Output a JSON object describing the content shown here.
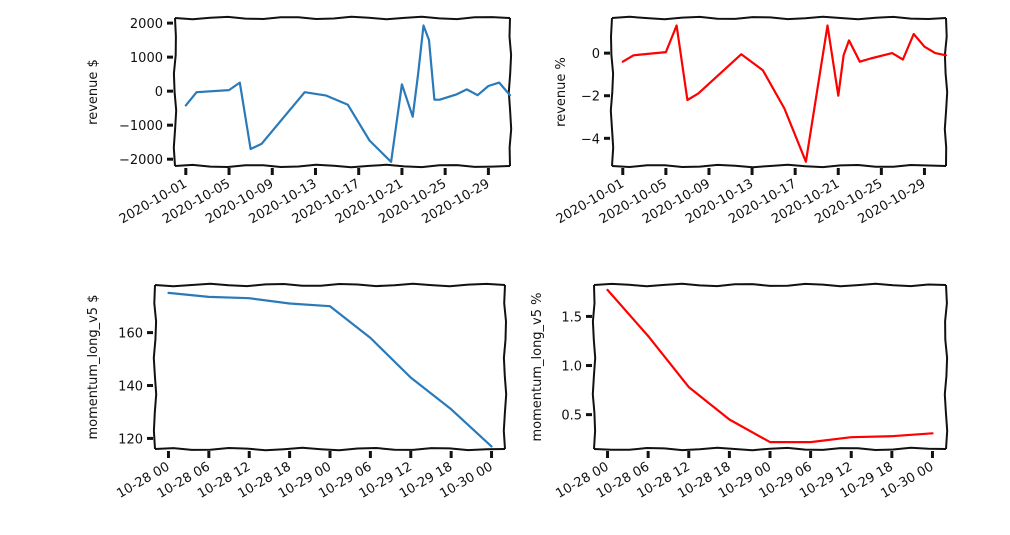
{
  "chart_data": [
    {
      "type": "line",
      "ylabel": "revenue $",
      "color": "#2a7ab9",
      "ylim": [
        -2200,
        2150
      ],
      "xlim": [
        "2020-09-30",
        "2020-10-31"
      ],
      "x_ticks": [
        "2020-10-01",
        "2020-10-05",
        "2020-10-09",
        "2020-10-13",
        "2020-10-17",
        "2020-10-21",
        "2020-10-25",
        "2020-10-29"
      ],
      "y_ticks": [
        2000,
        1000,
        0,
        -1000,
        -2000
      ],
      "y_tick_labels": [
        "2000",
        "1000",
        "0",
        "−1000",
        "−2000"
      ],
      "series": [
        {
          "x": [
            "2020-10-01",
            "2020-10-02",
            "2020-10-05",
            "2020-10-06",
            "2020-10-07",
            "2020-10-08",
            "2020-10-12",
            "2020-10-14",
            "2020-10-16",
            "2020-10-18",
            "2020-10-20",
            "2020-10-21",
            "2020-10-22",
            "2020-10-22 12:00",
            "2020-10-23",
            "2020-10-23 12:00",
            "2020-10-24",
            "2020-10-24 12:00",
            "2020-10-26",
            "2020-10-27",
            "2020-10-28",
            "2020-10-29",
            "2020-10-30",
            "2020-10-31"
          ],
          "y": [
            -420,
            -30,
            30,
            250,
            -1700,
            -1550,
            -30,
            -130,
            -400,
            -1450,
            -2080,
            200,
            -750,
            500,
            1930,
            1500,
            -250,
            -250,
            -100,
            50,
            -120,
            150,
            250,
            -120
          ]
        }
      ]
    },
    {
      "type": "line",
      "ylabel": "revenue %",
      "color": "#ff0000",
      "ylim": [
        -5.3,
        1.65
      ],
      "xlim": [
        "2020-09-30",
        "2020-10-31"
      ],
      "x_ticks": [
        "2020-10-01",
        "2020-10-05",
        "2020-10-09",
        "2020-10-13",
        "2020-10-17",
        "2020-10-21",
        "2020-10-25",
        "2020-10-29"
      ],
      "y_ticks": [
        0,
        -2,
        -4
      ],
      "y_tick_labels": [
        "0",
        "−2",
        "−4"
      ],
      "series": [
        {
          "x": [
            "2020-10-01",
            "2020-10-02",
            "2020-10-05",
            "2020-10-06",
            "2020-10-07",
            "2020-10-08",
            "2020-10-12",
            "2020-10-14",
            "2020-10-16",
            "2020-10-18",
            "2020-10-20",
            "2020-10-21",
            "2020-10-21 12:00",
            "2020-10-22",
            "2020-10-22 12:00",
            "2020-10-23",
            "2020-10-24",
            "2020-10-26",
            "2020-10-27",
            "2020-10-28",
            "2020-10-29",
            "2020-10-30",
            "2020-10-31"
          ],
          "y": [
            -0.4,
            -0.1,
            0.05,
            1.3,
            -2.2,
            -1.9,
            -0.05,
            -0.8,
            -2.6,
            -5.1,
            1.3,
            -2.0,
            -0.1,
            0.6,
            0.1,
            -0.4,
            -0.25,
            0.0,
            -0.3,
            0.9,
            0.3,
            0.0,
            -0.1
          ]
        }
      ]
    },
    {
      "type": "line",
      "ylabel": "momentum_long_v5 $",
      "color": "#2a7ab9",
      "ylim": [
        116,
        178
      ],
      "xlim": [
        "2020-10-27 22:00",
        "2020-10-30 02:00"
      ],
      "x_ticks": [
        "2020-10-28 00:00",
        "2020-10-28 06:00",
        "2020-10-28 12:00",
        "2020-10-28 18:00",
        "2020-10-29 00:00",
        "2020-10-29 06:00",
        "2020-10-29 12:00",
        "2020-10-29 18:00",
        "2020-10-30 00:00"
      ],
      "x_tick_labels": [
        "10-28 00",
        "10-28 06",
        "10-28 12",
        "10-28 18",
        "10-29 00",
        "10-29 06",
        "10-29 12",
        "10-29 18",
        "10-30 00"
      ],
      "y_ticks": [
        160,
        140,
        120
      ],
      "y_tick_labels": [
        "160",
        "140",
        "120"
      ],
      "series": [
        {
          "x": [
            "2020-10-28 00:00",
            "2020-10-28 06:00",
            "2020-10-28 12:00",
            "2020-10-28 18:00",
            "2020-10-29 00:00",
            "2020-10-29 06:00",
            "2020-10-29 12:00",
            "2020-10-29 18:00",
            "2020-10-30 00:00"
          ],
          "y": [
            175,
            173.5,
            173,
            171,
            170,
            158,
            143,
            131,
            117
          ]
        }
      ]
    },
    {
      "type": "line",
      "ylabel": "momentum_long_v5 %",
      "color": "#ff0000",
      "ylim": [
        0.15,
        1.82
      ],
      "xlim": [
        "2020-10-27 22:00",
        "2020-10-30 02:00"
      ],
      "x_ticks": [
        "2020-10-28 00:00",
        "2020-10-28 06:00",
        "2020-10-28 12:00",
        "2020-10-28 18:00",
        "2020-10-29 00:00",
        "2020-10-29 06:00",
        "2020-10-29 12:00",
        "2020-10-29 18:00",
        "2020-10-30 00:00"
      ],
      "x_tick_labels": [
        "10-28 00",
        "10-28 06",
        "10-28 12",
        "10-28 18",
        "10-29 00",
        "10-29 06",
        "10-29 12",
        "10-29 18",
        "10-30 00"
      ],
      "y_ticks": [
        1.5,
        1.0,
        0.5
      ],
      "y_tick_labels": [
        "1.5",
        "1.0",
        "0.5"
      ],
      "series": [
        {
          "x": [
            "2020-10-28 00:00",
            "2020-10-28 06:00",
            "2020-10-28 12:00",
            "2020-10-28 18:00",
            "2020-10-29 00:00",
            "2020-10-29 06:00",
            "2020-10-29 12:00",
            "2020-10-29 18:00",
            "2020-10-30 00:00"
          ],
          "y": [
            1.77,
            1.3,
            0.78,
            0.45,
            0.22,
            0.22,
            0.27,
            0.28,
            0.31
          ]
        }
      ]
    }
  ]
}
